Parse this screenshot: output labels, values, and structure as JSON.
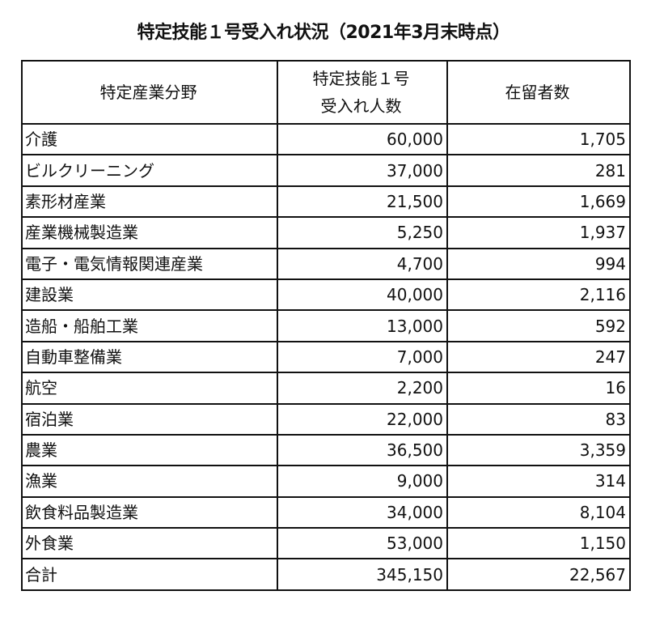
{
  "title": "特定技能１号受入れ状況（2021年3月末時点）",
  "table": {
    "headers": [
      "特定産業分野",
      "特定技能１号",
      "受入れ人数",
      "在留者数"
    ],
    "rows": [
      [
        "介護",
        "60,000",
        "1,705"
      ],
      [
        "ビルクリーニング",
        "37,000",
        "281"
      ],
      [
        "素形材産業",
        "21,500",
        "1,669"
      ],
      [
        "産業機械製造業",
        "5,250",
        "1,937"
      ],
      [
        "電子・電気情報関連産業",
        "4,700",
        "994"
      ],
      [
        "建設業",
        "40,000",
        "2,116"
      ],
      [
        "造船・船舶工業",
        "13,000",
        "592"
      ],
      [
        "自動車整備業",
        "7,000",
        "247"
      ],
      [
        "航空",
        "2,200",
        "16"
      ],
      [
        "宿泊業",
        "22,000",
        "83"
      ],
      [
        "農業",
        "36,500",
        "3,359"
      ],
      [
        "漁業",
        "9,000",
        "314"
      ],
      [
        "飲食料品製造業",
        "34,000",
        "8,104"
      ],
      [
        "外食業",
        "53,000",
        "1,150"
      ],
      [
        "合計",
        "345,150",
        "22,567"
      ]
    ]
  }
}
